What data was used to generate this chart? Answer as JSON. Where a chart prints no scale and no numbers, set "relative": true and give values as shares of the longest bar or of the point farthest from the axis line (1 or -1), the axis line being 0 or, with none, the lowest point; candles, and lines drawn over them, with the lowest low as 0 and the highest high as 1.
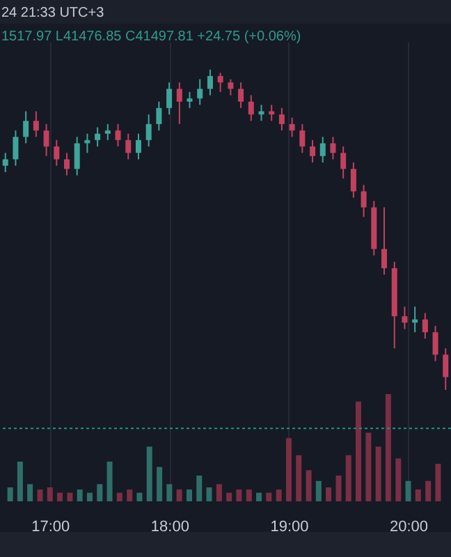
{
  "chart_data": [
    {
      "type": "candlestick",
      "relative": true,
      "annotations": [
        "24 21:33 UTC+3",
        "1517.97  L41476.85  C41497.81  +24.75 (+0.06%)"
      ],
      "categories": [
        null,
        null,
        null,
        null,
        null,
        null,
        null,
        null,
        null,
        null,
        null,
        null,
        null,
        null,
        null,
        null,
        null,
        null,
        null,
        null,
        null,
        null,
        null,
        null,
        null,
        null,
        null,
        null,
        null,
        null,
        null,
        null,
        null,
        null,
        null,
        null,
        null,
        null,
        null,
        null,
        null,
        null,
        null,
        null
      ],
      "ohlc": [
        [
          0.7,
          0.74,
          0.68,
          0.72
        ],
        [
          0.72,
          0.81,
          0.7,
          0.79
        ],
        [
          0.79,
          0.87,
          0.77,
          0.84
        ],
        [
          0.84,
          0.87,
          0.79,
          0.81
        ],
        [
          0.81,
          0.83,
          0.73,
          0.76
        ],
        [
          0.76,
          0.78,
          0.7,
          0.72
        ],
        [
          0.72,
          0.74,
          0.67,
          0.69
        ],
        [
          0.69,
          0.79,
          0.67,
          0.77
        ],
        [
          0.77,
          0.8,
          0.74,
          0.78
        ],
        [
          0.78,
          0.82,
          0.76,
          0.8
        ],
        [
          0.8,
          0.83,
          0.78,
          0.81
        ],
        [
          0.81,
          0.83,
          0.76,
          0.78
        ],
        [
          0.78,
          0.8,
          0.72,
          0.74
        ],
        [
          0.74,
          0.8,
          0.72,
          0.78
        ],
        [
          0.78,
          0.86,
          0.76,
          0.83
        ],
        [
          0.83,
          0.9,
          0.81,
          0.88
        ],
        [
          0.88,
          0.96,
          0.86,
          0.94
        ],
        [
          0.94,
          0.96,
          0.83,
          0.9
        ],
        [
          0.9,
          0.93,
          0.88,
          0.91
        ],
        [
          0.91,
          0.97,
          0.89,
          0.94
        ],
        [
          0.94,
          1,
          0.92,
          0.98
        ],
        [
          0.98,
          0.99,
          0.93,
          0.96
        ],
        [
          0.96,
          0.97,
          0.92,
          0.94
        ],
        [
          0.94,
          0.96,
          0.88,
          0.9
        ],
        [
          0.9,
          0.92,
          0.84,
          0.86
        ],
        [
          0.86,
          0.89,
          0.84,
          0.87
        ],
        [
          0.87,
          0.89,
          0.84,
          0.86
        ],
        [
          0.86,
          0.88,
          0.81,
          0.83
        ],
        [
          0.83,
          0.85,
          0.79,
          0.81
        ],
        [
          0.81,
          0.83,
          0.74,
          0.76
        ],
        [
          0.76,
          0.78,
          0.71,
          0.73
        ],
        [
          0.73,
          0.79,
          0.71,
          0.77
        ],
        [
          0.77,
          0.79,
          0.72,
          0.74
        ],
        [
          0.74,
          0.76,
          0.66,
          0.69
        ],
        [
          0.69,
          0.71,
          0.6,
          0.62
        ],
        [
          0.62,
          0.64,
          0.54,
          0.57
        ],
        [
          0.57,
          0.59,
          0.42,
          0.44
        ],
        [
          0.44,
          0.57,
          0.36,
          0.38
        ],
        [
          0.38,
          0.4,
          0.13,
          0.23
        ],
        [
          0.23,
          0.26,
          0.19,
          0.21
        ],
        [
          0.21,
          0.26,
          0.18,
          0.22
        ],
        [
          0.22,
          0.24,
          0.16,
          0.18
        ],
        [
          0.18,
          0.2,
          0.09,
          0.11
        ],
        [
          0.11,
          0.13,
          0,
          0.04
        ]
      ],
      "colors": [
        "#3fa59a",
        "#3fa59a",
        "#3fa59a",
        "#c2415f",
        "#c2415f",
        "#c2415f",
        "#c2415f",
        "#3fa59a",
        "#3fa59a",
        "#3fa59a",
        "#3fa59a",
        "#c2415f",
        "#c2415f",
        "#3fa59a",
        "#3fa59a",
        "#3fa59a",
        "#3fa59a",
        "#c2415f",
        "#3fa59a",
        "#3fa59a",
        "#3fa59a",
        "#c2415f",
        "#c2415f",
        "#c2415f",
        "#c2415f",
        "#3fa59a",
        "#c2415f",
        "#c2415f",
        "#c2415f",
        "#c2415f",
        "#c2415f",
        "#3fa59a",
        "#c2415f",
        "#c2415f",
        "#c2415f",
        "#c2415f",
        "#c2415f",
        "#c2415f",
        "#c2415f",
        "#c2415f",
        "#3fa59a",
        "#c2415f",
        "#c2415f",
        "#c2415f"
      ]
    },
    {
      "type": "bar",
      "relative": true,
      "grid": "x",
      "tick_labels": "x",
      "x": [
        16.667,
        16.75,
        16.833,
        16.917,
        17,
        17.083,
        17.167,
        17.25,
        17.333,
        17.417,
        17.5,
        17.583,
        17.667,
        17.75,
        17.833,
        17.917,
        18,
        18.083,
        18.167,
        18.25,
        18.333,
        18.417,
        18.5,
        18.583,
        18.667,
        18.75,
        18.833,
        18.917,
        19,
        19.083,
        19.167,
        19.25,
        19.333,
        19.417,
        19.5,
        19.583,
        19.667,
        19.75,
        19.833,
        19.917,
        20,
        20.083,
        20.167,
        20.25
      ],
      "xlim": [
        16.64,
        20.3
      ],
      "xticks": [
        {
          "value": 17,
          "label": "17:00"
        },
        {
          "value": 18,
          "label": "18:00"
        },
        {
          "value": 19,
          "label": "19:00"
        },
        {
          "value": 20,
          "label": "20:00"
        }
      ],
      "values": [
        0.13,
        0.37,
        0.16,
        0.11,
        0.13,
        0.08,
        0.08,
        0.11,
        0.08,
        0.16,
        0.37,
        0.08,
        0.11,
        0.08,
        0.51,
        0.32,
        0.16,
        0.11,
        0.11,
        0.24,
        0.13,
        0.16,
        0.08,
        0.11,
        0.11,
        0.08,
        0.08,
        0.11,
        0.59,
        0.43,
        0.29,
        0.19,
        0.13,
        0.24,
        0.43,
        0.93,
        0.64,
        0.51,
        1,
        0.4,
        0.19,
        0.11,
        0.19,
        0.35
      ],
      "colors": [
        "#2f6f6a",
        "#2f6f6a",
        "#2f6f6a",
        "#7a2f44",
        "#7a2f44",
        "#7a2f44",
        "#7a2f44",
        "#2f6f6a",
        "#2f6f6a",
        "#2f6f6a",
        "#2f6f6a",
        "#7a2f44",
        "#7a2f44",
        "#2f6f6a",
        "#2f6f6a",
        "#2f6f6a",
        "#2f6f6a",
        "#7a2f44",
        "#2f6f6a",
        "#2f6f6a",
        "#2f6f6a",
        "#7a2f44",
        "#7a2f44",
        "#7a2f44",
        "#7a2f44",
        "#2f6f6a",
        "#7a2f44",
        "#7a2f44",
        "#7a2f44",
        "#7a2f44",
        "#7a2f44",
        "#2f6f6a",
        "#7a2f44",
        "#7a2f44",
        "#7a2f44",
        "#7a2f44",
        "#7a2f44",
        "#7a2f44",
        "#7a2f44",
        "#7a2f44",
        "#2f6f6a",
        "#7a2f44",
        "#7a2f44",
        "#7a2f44"
      ],
      "ref_lines": [
        {
          "axis": "y",
          "value": 0.68,
          "color": "#2a8f84",
          "line_style": "dotted"
        }
      ]
    }
  ]
}
